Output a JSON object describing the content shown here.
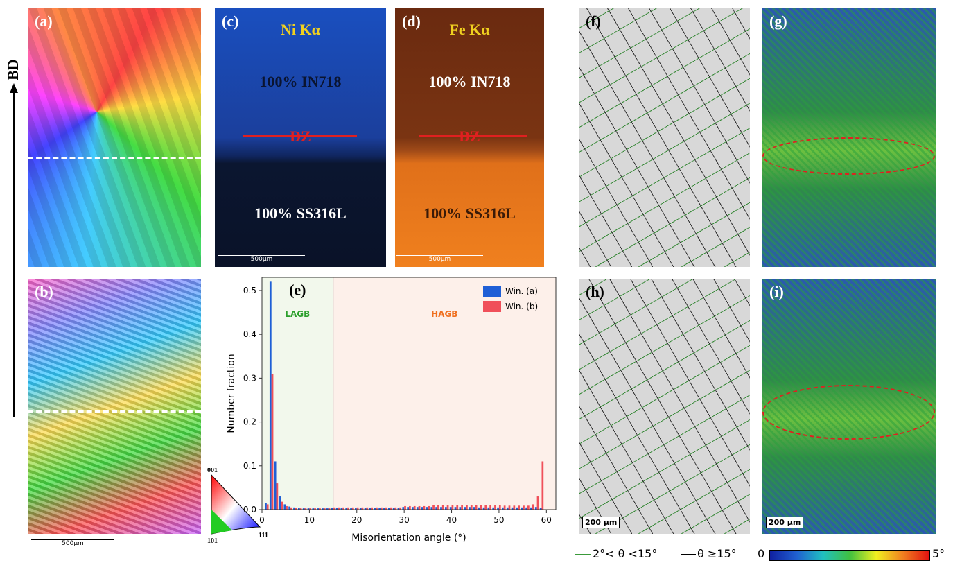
{
  "panel_a": {
    "label": "(a)"
  },
  "panel_b": {
    "label": "(b)",
    "scale_bar": "500μm"
  },
  "build_direction": "BD",
  "panel_c": {
    "label": "(c)",
    "element": "Ni Kα",
    "top_text": "100% IN718",
    "zone": "DZ",
    "bottom_text": "100% SS316L",
    "scale_bar": "500μm"
  },
  "panel_d": {
    "label": "(d)",
    "element": "Fe Kα",
    "top_text": "100% IN718",
    "zone": "DZ",
    "bottom_text": "100% SS316L",
    "scale_bar": "500μm"
  },
  "panel_f": {
    "label": "(f)"
  },
  "panel_g": {
    "label": "(g)"
  },
  "panel_h": {
    "label": "(h)",
    "scale_bar": "200 μm"
  },
  "panel_i": {
    "label": "(i)",
    "scale_bar": "200 μm"
  },
  "ipf_key": {
    "top": "001",
    "left": "101",
    "right": "111"
  },
  "boundary_legend": [
    "2°< θ <15°",
    "θ ≥15°"
  ],
  "kam_scale": {
    "min": "0",
    "max": "5°"
  },
  "chart_data": {
    "type": "bar",
    "panel_label": "(e)",
    "x_label": "Misorientation angle (°)",
    "y_label": "Number fraction",
    "region_labels": [
      "LAGB",
      "HAGB"
    ],
    "lagb_limit": 15,
    "x": [
      1,
      2,
      3,
      4,
      5,
      6,
      7,
      8,
      9,
      10,
      11,
      12,
      13,
      14,
      15,
      16,
      17,
      18,
      19,
      20,
      21,
      22,
      23,
      24,
      25,
      26,
      27,
      28,
      29,
      30,
      31,
      32,
      33,
      34,
      35,
      36,
      37,
      38,
      39,
      40,
      41,
      42,
      43,
      44,
      45,
      46,
      47,
      48,
      49,
      50,
      51,
      52,
      53,
      54,
      55,
      56,
      57,
      58,
      59
    ],
    "series": [
      {
        "name": "Win. (a)",
        "color": "#1f5fd6",
        "values": [
          0.015,
          0.52,
          0.11,
          0.03,
          0.012,
          0.007,
          0.005,
          0.004,
          0.003,
          0.003,
          0.003,
          0.003,
          0.003,
          0.003,
          0.004,
          0.004,
          0.004,
          0.004,
          0.004,
          0.004,
          0.004,
          0.004,
          0.004,
          0.004,
          0.004,
          0.004,
          0.004,
          0.004,
          0.004,
          0.006,
          0.006,
          0.006,
          0.006,
          0.006,
          0.006,
          0.006,
          0.006,
          0.006,
          0.006,
          0.006,
          0.006,
          0.006,
          0.006,
          0.006,
          0.006,
          0.005,
          0.005,
          0.005,
          0.005,
          0.005,
          0.005,
          0.005,
          0.005,
          0.005,
          0.005,
          0.005,
          0.005,
          0.006,
          0.004
        ]
      },
      {
        "name": "Win. (b)",
        "color": "#f0505a",
        "values": [
          0.012,
          0.31,
          0.06,
          0.018,
          0.008,
          0.005,
          0.004,
          0.003,
          0.003,
          0.003,
          0.003,
          0.003,
          0.003,
          0.003,
          0.005,
          0.005,
          0.005,
          0.005,
          0.005,
          0.005,
          0.005,
          0.005,
          0.005,
          0.005,
          0.005,
          0.005,
          0.005,
          0.005,
          0.005,
          0.008,
          0.008,
          0.008,
          0.008,
          0.008,
          0.008,
          0.011,
          0.011,
          0.011,
          0.011,
          0.011,
          0.011,
          0.011,
          0.011,
          0.011,
          0.011,
          0.011,
          0.011,
          0.011,
          0.011,
          0.011,
          0.009,
          0.009,
          0.009,
          0.009,
          0.009,
          0.009,
          0.012,
          0.03,
          0.11
        ]
      }
    ],
    "xlim": [
      0,
      62
    ],
    "xticks": [
      0,
      10,
      20,
      30,
      40,
      50,
      60
    ],
    "ylim": [
      0,
      0.53
    ],
    "yticks": [
      {
        "value": 0,
        "label": "0.0"
      },
      0.1,
      0.2,
      0.3,
      0.4,
      0.5
    ]
  }
}
